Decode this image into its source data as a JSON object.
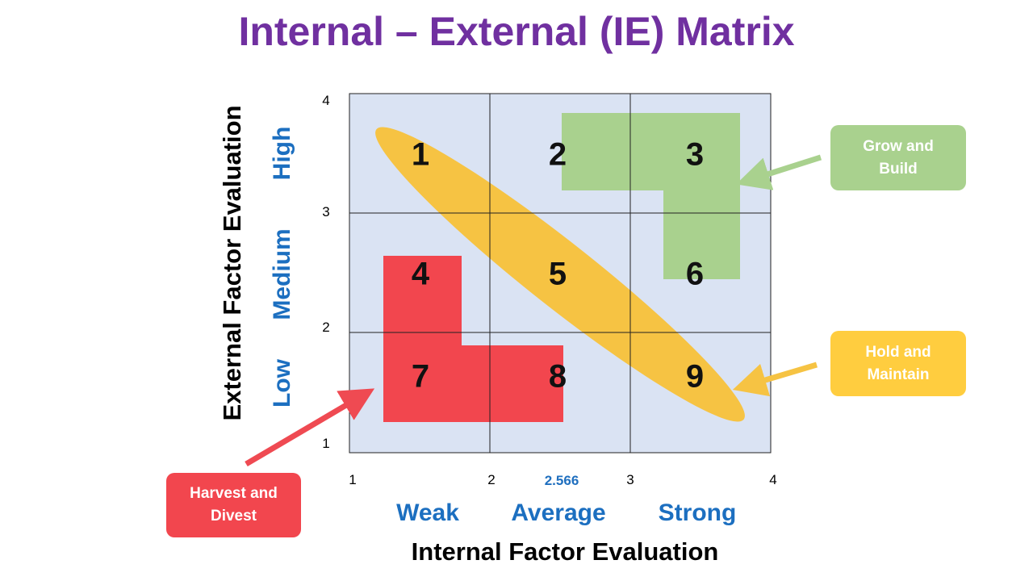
{
  "title": "Internal – External (IE) Matrix",
  "y_axis": {
    "label": "External Factor Evaluation",
    "ticks": [
      "4",
      "3",
      "2",
      "1"
    ],
    "categories": [
      "High",
      "Medium",
      "Low"
    ]
  },
  "x_axis": {
    "label": "Internal Factor Evaluation",
    "ticks": [
      "1",
      "2",
      "2.566",
      "3",
      "4"
    ],
    "categories": [
      "Weak",
      "Average",
      "Strong"
    ]
  },
  "cells": [
    "1",
    "2",
    "3",
    "4",
    "5",
    "6",
    "7",
    "8",
    "9"
  ],
  "callouts": {
    "grow": "Grow and Build",
    "hold": "Hold and Maintain",
    "harvest": "Harvest and Divest"
  }
}
